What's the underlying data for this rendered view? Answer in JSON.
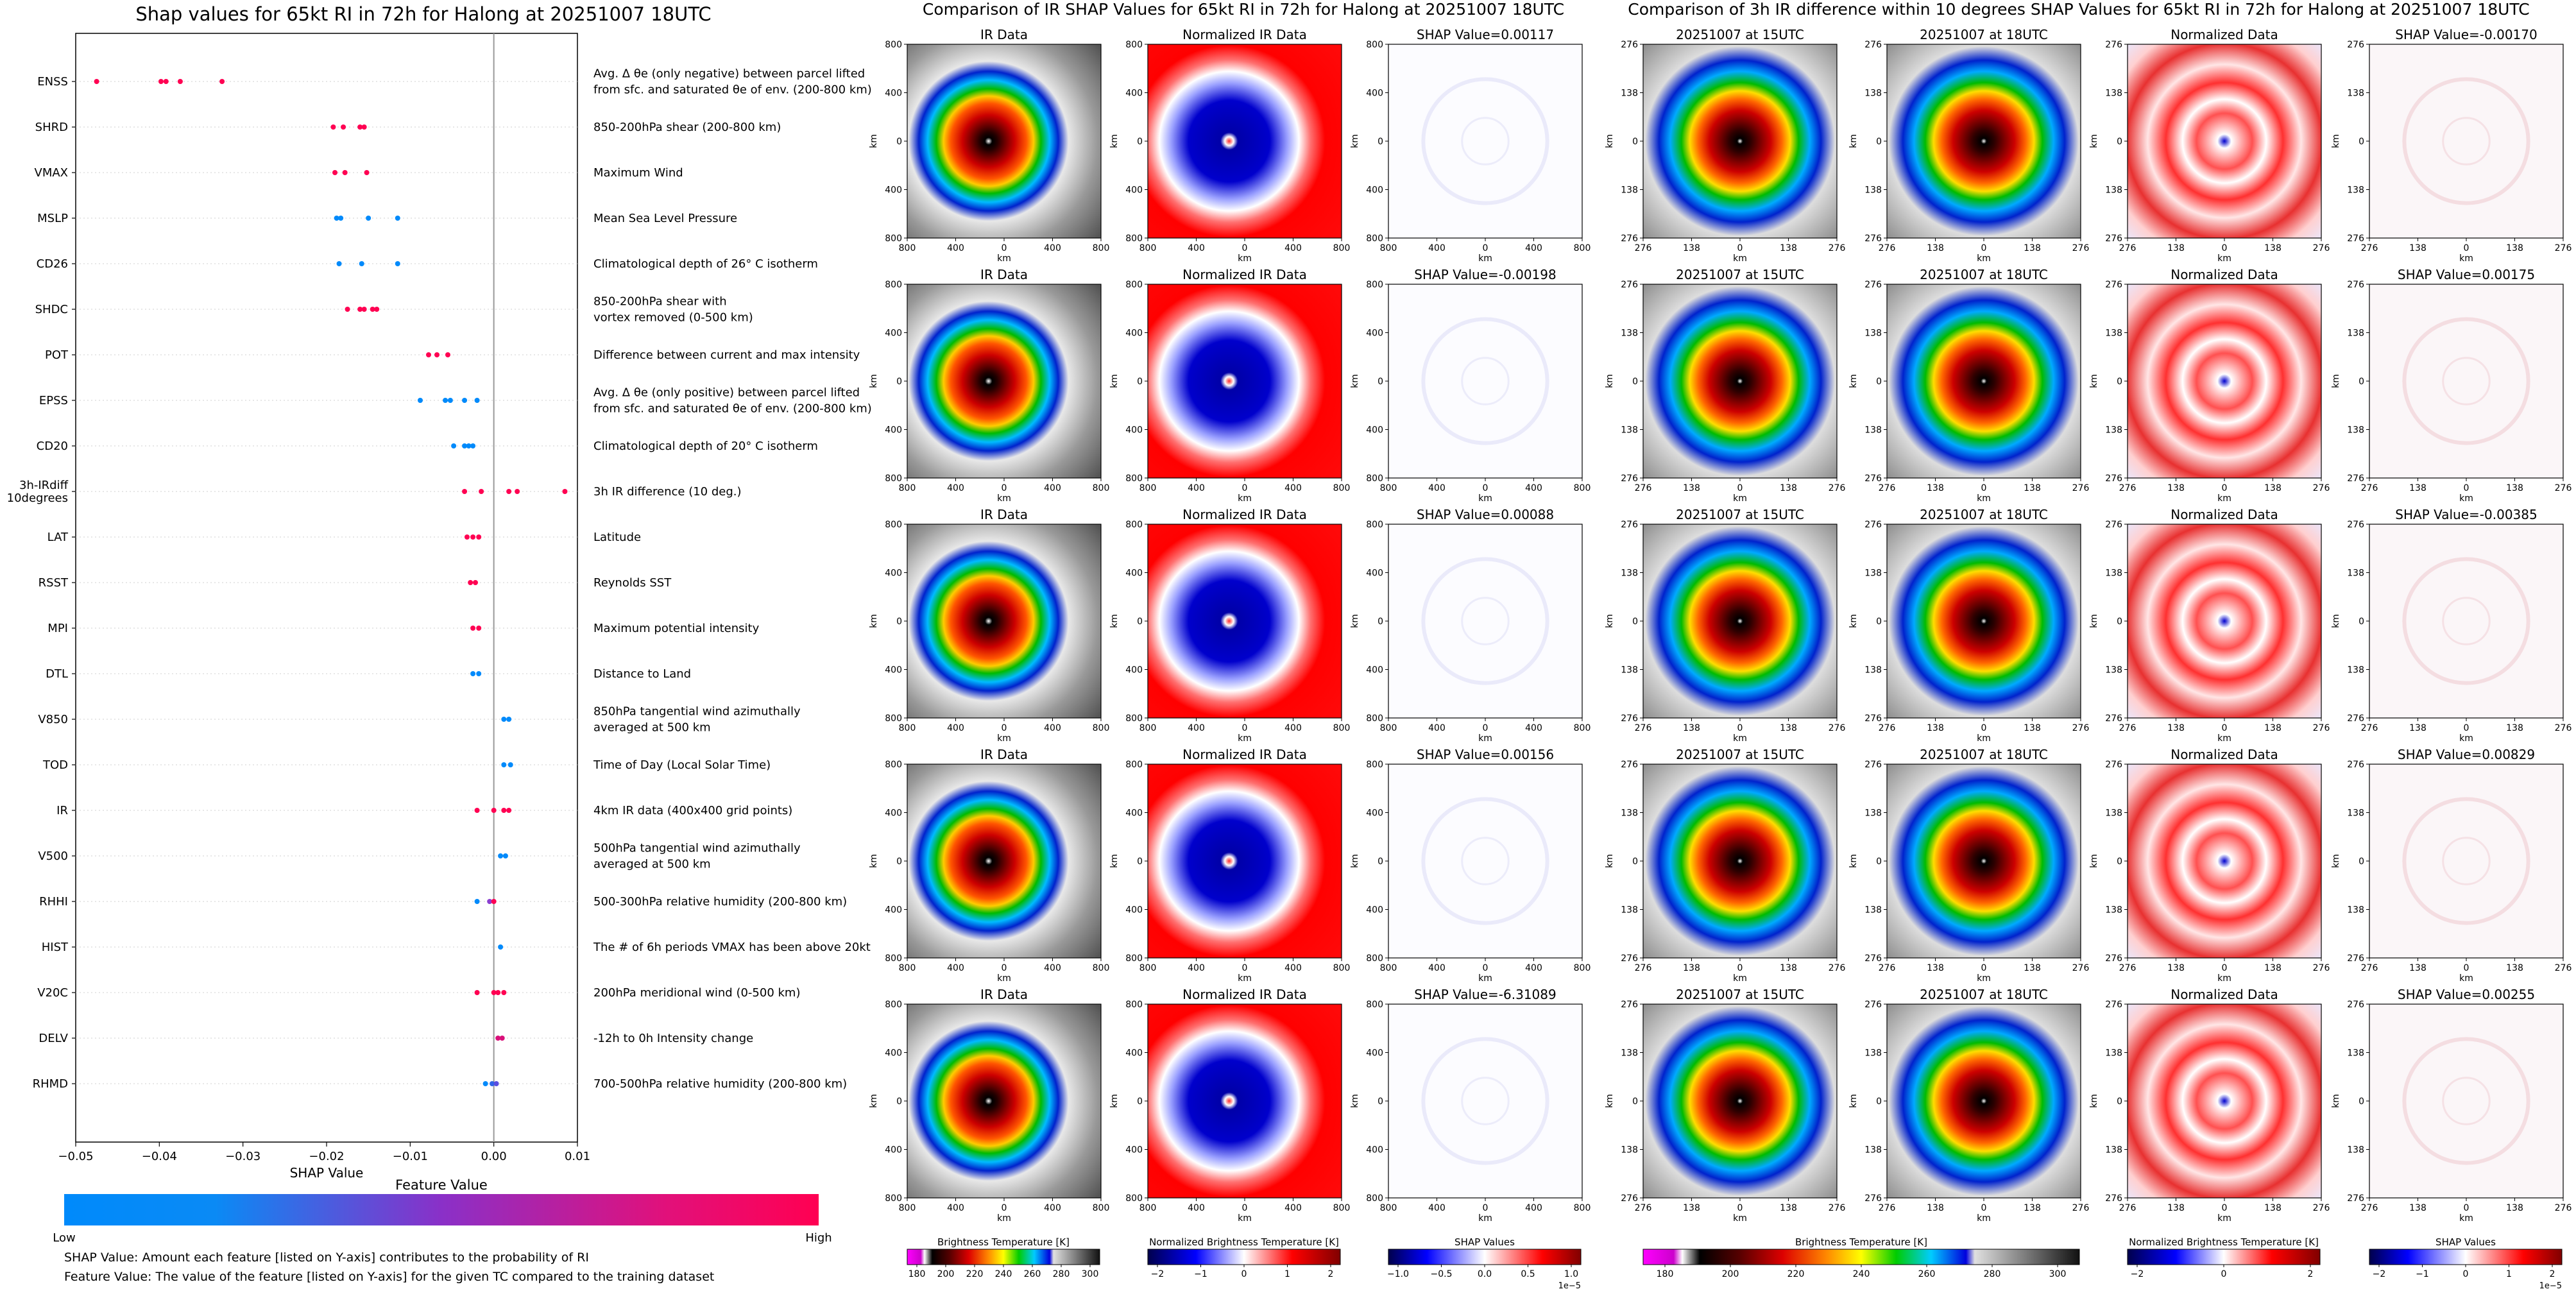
{
  "left_panel": {
    "title": "Shap values for 65kt RI in 72h for Halong at 20251007 18UTC",
    "colorbar": {
      "label": "Feature Value",
      "low_label": "Low",
      "high_label": "High",
      "low_color": "#008afb",
      "high_color": "#ff0052"
    },
    "notes": [
      "SHAP Value: Amount each feature [listed on Y-axis] contributes to the probability of RI",
      "Feature Value: The value of the feature [listed on Y-axis] for the given TC compared to the training dataset"
    ]
  },
  "ir_panel": {
    "title": "Comparison of IR SHAP Values for 65kt RI in 72h for Halong at 20251007 18UTC",
    "column_titles": [
      "IR Data",
      "Normalized IR Data"
    ],
    "shap_titles": [
      "SHAP Value=0.00117",
      "SHAP Value=-0.00198",
      "SHAP Value=0.00088",
      "SHAP Value=0.00156",
      "SHAP Value=-6.31089"
    ],
    "ticks": [
      "800",
      "400",
      "0",
      "400",
      "800"
    ],
    "axis_label": "km",
    "colorbars": [
      {
        "label": "Brightness Temperature [K]",
        "ticks": [
          "180",
          "200",
          "220",
          "240",
          "260",
          "280",
          "300"
        ]
      },
      {
        "label": "Normalized Brightness Temperature [K]",
        "ticks": [
          "−2",
          "−1",
          "0",
          "1",
          "2"
        ]
      },
      {
        "label": "SHAP Values",
        "ticks": [
          "−1.0",
          "−0.5",
          "0.0",
          "0.5",
          "1.0"
        ],
        "exponent": "1e−5"
      }
    ]
  },
  "diff_panel": {
    "title": "Comparison of 3h IR difference within 10 degrees SHAP Values for 65kt RI in 72h for Halong at 20251007 18UTC",
    "column_titles": [
      "20251007 at 15UTC",
      "20251007 at 18UTC",
      "Normalized Data"
    ],
    "shap_titles": [
      "SHAP Value=-0.00170",
      "SHAP Value=0.00175",
      "SHAP Value=-0.00385",
      "SHAP Value=0.00829",
      "SHAP Value=0.00255"
    ],
    "ticks": [
      "276",
      "138",
      "0",
      "138",
      "276"
    ],
    "axis_label": "km",
    "colorbars": [
      {
        "label": "Brightness Temperature [K]",
        "ticks": [
          "180",
          "200",
          "220",
          "240",
          "260",
          "280",
          "300"
        ]
      },
      {
        "label": "Normalized Brightness Temperature [K]",
        "ticks": [
          "−2",
          "0",
          "2"
        ]
      },
      {
        "label": "SHAP Values",
        "ticks": [
          "−2",
          "−1",
          "0",
          "1",
          "2"
        ],
        "exponent": "1e−5"
      }
    ]
  },
  "chart_data": {
    "type": "scatter",
    "title": "Shap values for 65kt RI in 72h for Halong at 20251007 18UTC",
    "xlabel": "SHAP Value",
    "xlim": [
      -0.05,
      0.01
    ],
    "xticks": [
      -0.05,
      -0.04,
      -0.03,
      -0.02,
      -0.01,
      0.0,
      0.01
    ],
    "xtick_labels": [
      "−0.05",
      "−0.04",
      "−0.03",
      "−0.02",
      "−0.01",
      "0.00",
      "0.01"
    ],
    "features": [
      {
        "name": "ENSS",
        "desc": [
          "Avg. Δ θe (only negative) between parcel lifted",
          "from sfc. and saturated θe of env. (200-800 km)"
        ],
        "points": [
          [
            -0.0475,
            "#ff0052"
          ],
          [
            -0.0398,
            "#ff0052"
          ],
          [
            -0.0392,
            "#ff0052"
          ],
          [
            -0.0375,
            "#ff0052"
          ],
          [
            -0.0325,
            "#ff0052"
          ]
        ]
      },
      {
        "name": "SHRD",
        "desc": [
          "850-200hPa shear (200-800 km)"
        ],
        "points": [
          [
            -0.0192,
            "#ff0052"
          ],
          [
            -0.018,
            "#ff0052"
          ],
          [
            -0.016,
            "#ff0052"
          ],
          [
            -0.0155,
            "#ff0052"
          ]
        ]
      },
      {
        "name": "VMAX",
        "desc": [
          "Maximum Wind"
        ],
        "points": [
          [
            -0.019,
            "#ff0052"
          ],
          [
            -0.0178,
            "#ff0052"
          ],
          [
            -0.0152,
            "#ff0052"
          ]
        ]
      },
      {
        "name": "MSLP",
        "desc": [
          "Mean Sea Level Pressure"
        ],
        "points": [
          [
            -0.0188,
            "#008afb"
          ],
          [
            -0.0183,
            "#008afb"
          ],
          [
            -0.015,
            "#008afb"
          ],
          [
            -0.0115,
            "#008afb"
          ]
        ]
      },
      {
        "name": "CD26",
        "desc": [
          "Climatological depth of 26° C isotherm"
        ],
        "points": [
          [
            -0.0185,
            "#008afb"
          ],
          [
            -0.0158,
            "#008afb"
          ],
          [
            -0.0115,
            "#008afb"
          ]
        ]
      },
      {
        "name": "SHDC",
        "desc": [
          "850-200hPa shear with",
          "vortex removed (0-500 km)"
        ],
        "points": [
          [
            -0.0175,
            "#ff0052"
          ],
          [
            -0.016,
            "#ff0052"
          ],
          [
            -0.0155,
            "#ff0052"
          ],
          [
            -0.0145,
            "#ff0052"
          ],
          [
            -0.014,
            "#ff0052"
          ]
        ]
      },
      {
        "name": "POT",
        "desc": [
          "Difference between current and max intensity"
        ],
        "points": [
          [
            -0.0078,
            "#ff0052"
          ],
          [
            -0.0068,
            "#ff0052"
          ],
          [
            -0.0055,
            "#ff0052"
          ]
        ]
      },
      {
        "name": "EPSS",
        "desc": [
          "Avg. Δ θe (only positive) between parcel lifted",
          "from sfc. and saturated θe of env. (200-800 km)"
        ],
        "points": [
          [
            -0.0088,
            "#008afb"
          ],
          [
            -0.0058,
            "#008afb"
          ],
          [
            -0.0052,
            "#008afb"
          ],
          [
            -0.0035,
            "#008afb"
          ],
          [
            -0.002,
            "#008afb"
          ]
        ]
      },
      {
        "name": "CD20",
        "desc": [
          "Climatological depth of 20° C isotherm"
        ],
        "points": [
          [
            -0.0048,
            "#008afb"
          ],
          [
            -0.0035,
            "#008afb"
          ],
          [
            -0.003,
            "#008afb"
          ],
          [
            -0.0025,
            "#008afb"
          ]
        ]
      },
      {
        "name": "3h-IRdiff 10degrees",
        "desc": [
          "3h IR difference (10 deg.)"
        ],
        "points": [
          [
            -0.0035,
            "#ff0052"
          ],
          [
            -0.0015,
            "#ff0052"
          ],
          [
            0.0018,
            "#ff0052"
          ],
          [
            0.0028,
            "#ff0052"
          ],
          [
            0.0085,
            "#ff0052"
          ]
        ]
      },
      {
        "name": "LAT",
        "desc": [
          "Latitude"
        ],
        "points": [
          [
            -0.0032,
            "#ff0052"
          ],
          [
            -0.0025,
            "#ff0052"
          ],
          [
            -0.0018,
            "#ff0052"
          ]
        ]
      },
      {
        "name": "RSST",
        "desc": [
          "Reynolds SST"
        ],
        "points": [
          [
            -0.0028,
            "#ff0052"
          ],
          [
            -0.0022,
            "#ff0052"
          ]
        ]
      },
      {
        "name": "MPI",
        "desc": [
          "Maximum potential intensity"
        ],
        "points": [
          [
            -0.0025,
            "#ff0052"
          ],
          [
            -0.0018,
            "#ff0052"
          ]
        ]
      },
      {
        "name": "DTL",
        "desc": [
          "Distance to Land"
        ],
        "points": [
          [
            -0.0025,
            "#008afb"
          ],
          [
            -0.0018,
            "#008afb"
          ]
        ]
      },
      {
        "name": "V850",
        "desc": [
          "850hPa tangential wind azimuthally",
          "averaged at 500 km"
        ],
        "points": [
          [
            0.0012,
            "#008afb"
          ],
          [
            0.0018,
            "#008afb"
          ]
        ]
      },
      {
        "name": "TOD",
        "desc": [
          "Time of Day (Local Solar Time)"
        ],
        "points": [
          [
            0.0012,
            "#008afb"
          ],
          [
            0.002,
            "#008afb"
          ]
        ]
      },
      {
        "name": "IR",
        "desc": [
          "4km IR data (400x400 grid points)"
        ],
        "points": [
          [
            -0.002,
            "#ff0052"
          ],
          [
            0.0,
            "#ff0052"
          ],
          [
            0.0012,
            "#ff0052"
          ],
          [
            0.0018,
            "#ff0052"
          ]
        ]
      },
      {
        "name": "V500",
        "desc": [
          "500hPa tangential wind azimuthally",
          "averaged at 500 km"
        ],
        "points": [
          [
            0.0008,
            "#008afb"
          ],
          [
            0.0014,
            "#008afb"
          ]
        ]
      },
      {
        "name": "RHHI",
        "desc": [
          "500-300hPa relative humidity (200-800 km)"
        ],
        "points": [
          [
            -0.002,
            "#008afb"
          ],
          [
            -0.0005,
            "#8a3fd0"
          ],
          [
            0.0,
            "#ff0052"
          ]
        ]
      },
      {
        "name": "HIST",
        "desc": [
          "The # of 6h periods VMAX has been above 20kt"
        ],
        "points": [
          [
            0.0008,
            "#008afb"
          ]
        ]
      },
      {
        "name": "V20C",
        "desc": [
          "200hPa meridional wind (0-500 km)"
        ],
        "points": [
          [
            -0.002,
            "#ff0052"
          ],
          [
            0.0,
            "#ff0052"
          ],
          [
            0.0005,
            "#ff0052"
          ],
          [
            0.0012,
            "#ff0052"
          ]
        ]
      },
      {
        "name": "DELV",
        "desc": [
          "-12h to 0h Intensity change"
        ],
        "points": [
          [
            0.0005,
            "#d9107a"
          ],
          [
            0.001,
            "#d9107a"
          ]
        ]
      },
      {
        "name": "RHMD",
        "desc": [
          "700-500hPa relative humidity (200-800 km)"
        ],
        "points": [
          [
            -0.001,
            "#008afb"
          ],
          [
            -0.0002,
            "#3065e8"
          ],
          [
            0.0003,
            "#5a4ee0"
          ]
        ]
      }
    ]
  }
}
